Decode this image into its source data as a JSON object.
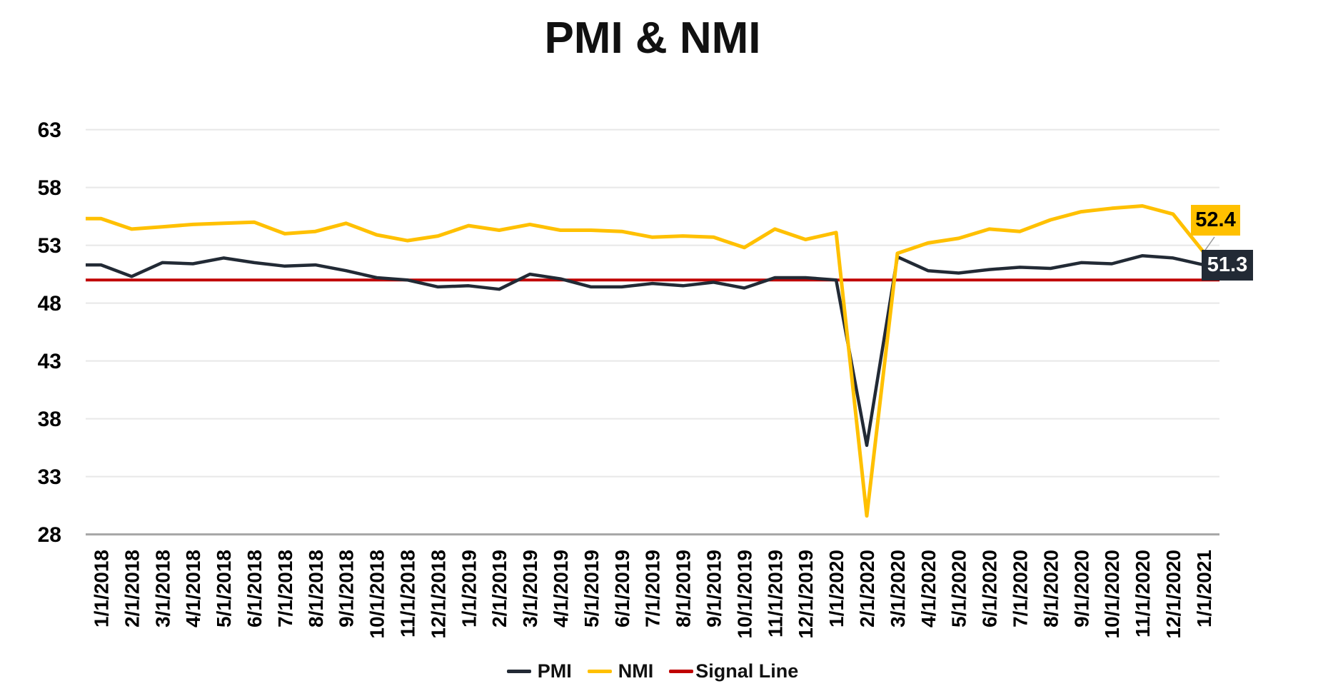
{
  "title": "PMI & NMI",
  "legend": {
    "items": [
      {
        "label": "PMI",
        "color": "#222A35"
      },
      {
        "label": "NMI",
        "color": "#FFC000"
      },
      {
        "label": "Signal Line",
        "color": "#C00000"
      }
    ]
  },
  "end_labels": {
    "nmi": {
      "text": "52.4",
      "bg": "#FFC000",
      "fg": "#000000"
    },
    "pmi": {
      "text": "51.3",
      "bg": "#222A35",
      "fg": "#FFFFFF"
    }
  },
  "chart_data": {
    "type": "line",
    "title": "PMI & NMI",
    "categories": [
      "1/1/2018",
      "2/1/2018",
      "3/1/2018",
      "4/1/2018",
      "5/1/2018",
      "6/1/2018",
      "7/1/2018",
      "8/1/2018",
      "9/1/2018",
      "10/1/2018",
      "11/1/2018",
      "12/1/2018",
      "1/1/2019",
      "2/1/2019",
      "3/1/2019",
      "4/1/2019",
      "5/1/2019",
      "6/1/2019",
      "7/1/2019",
      "8/1/2019",
      "9/1/2019",
      "10/1/2019",
      "11/1/2019",
      "12/1/2019",
      "1/1/2020",
      "2/1/2020",
      "3/1/2020",
      "4/1/2020",
      "5/1/2020",
      "6/1/2020",
      "7/1/2020",
      "8/1/2020",
      "9/1/2020",
      "10/1/2020",
      "11/1/2020",
      "12/1/2020",
      "1/1/2021"
    ],
    "series": [
      {
        "name": "PMI",
        "color": "#222A35",
        "stroke_width": 4.5,
        "values": [
          51.3,
          50.3,
          51.5,
          51.4,
          51.9,
          51.5,
          51.2,
          51.3,
          50.8,
          50.2,
          50.0,
          49.4,
          49.5,
          49.2,
          50.5,
          50.1,
          49.4,
          49.4,
          49.7,
          49.5,
          49.8,
          49.3,
          50.2,
          50.2,
          50.0,
          35.7,
          52.0,
          50.8,
          50.6,
          50.9,
          51.1,
          51.0,
          51.5,
          51.4,
          52.1,
          51.9,
          51.3
        ]
      },
      {
        "name": "NMI",
        "color": "#FFC000",
        "stroke_width": 5,
        "values": [
          55.3,
          54.4,
          54.6,
          54.8,
          54.9,
          55.0,
          54.0,
          54.2,
          54.9,
          53.9,
          53.4,
          53.8,
          54.7,
          54.3,
          54.8,
          54.3,
          54.3,
          54.2,
          53.7,
          53.8,
          53.7,
          52.8,
          54.4,
          53.5,
          54.1,
          29.6,
          52.3,
          53.2,
          53.6,
          54.4,
          54.2,
          55.2,
          55.9,
          56.2,
          56.4,
          55.7,
          52.4
        ]
      },
      {
        "name": "Signal Line",
        "color": "#C00000",
        "stroke_width": 4,
        "constant": 50
      }
    ],
    "xlabel": "",
    "ylabel": "",
    "ylim": [
      28,
      63
    ],
    "yticks": [
      28,
      33,
      38,
      43,
      48,
      53,
      58,
      63
    ],
    "grid": true,
    "legend_position": "bottom",
    "end_point_labels": {
      "NMI": "52.4",
      "PMI": "51.3"
    },
    "axis_colors": {
      "grid": "#E8E8E8",
      "axis_line": "#A6A6A6",
      "tick_text": "#000000",
      "leader": "#999999"
    }
  }
}
